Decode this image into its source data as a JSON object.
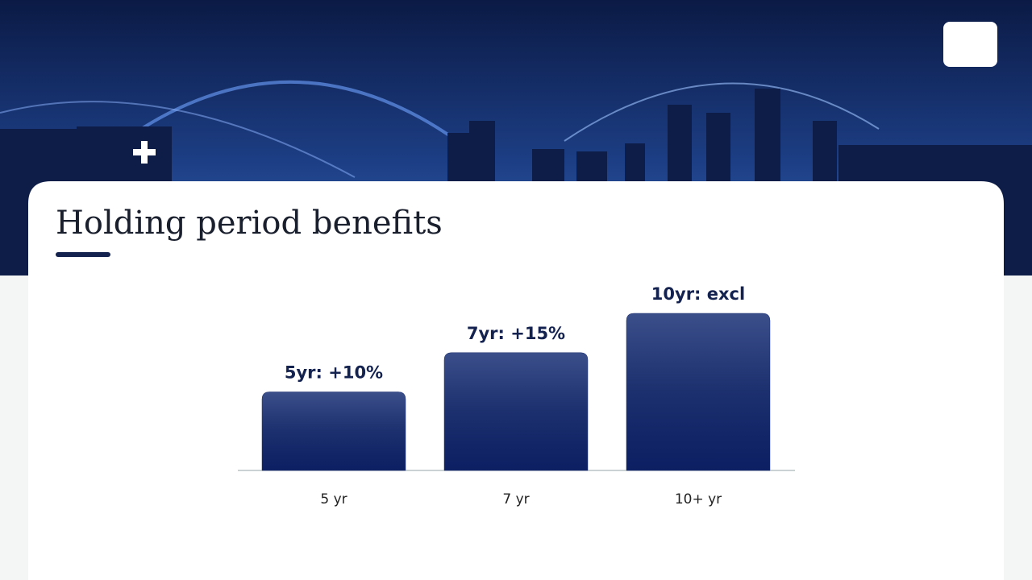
{
  "chart_data": {
    "type": "bar",
    "title": "Holding period benefits",
    "categories": [
      "5 yr",
      "7 yr",
      "10+ yr"
    ],
    "values": [
      10,
      15,
      20
    ],
    "value_labels": [
      "5yr: +10%",
      "7yr: +15%",
      "10yr: excl"
    ],
    "color": "#1c2f6e",
    "ylim": [
      0,
      20
    ]
  }
}
